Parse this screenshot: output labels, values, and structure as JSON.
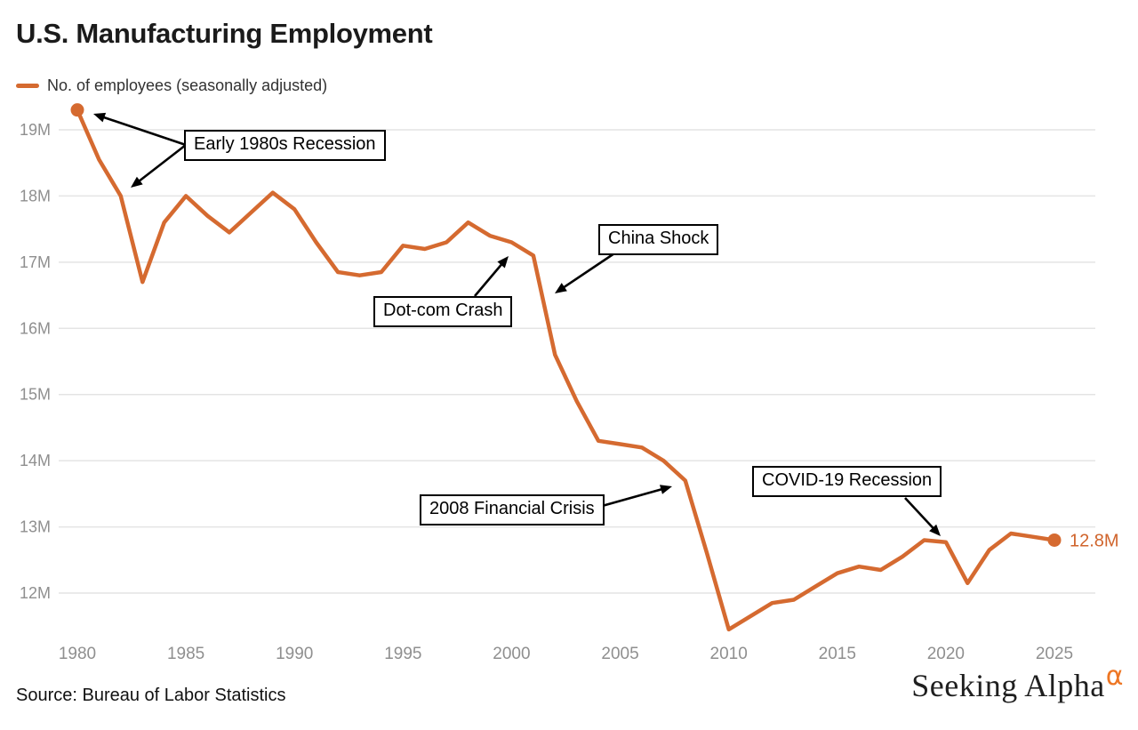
{
  "header": {
    "title": "U.S. Manufacturing Employment",
    "legend_label": "No. of employees (seasonally adjusted)"
  },
  "footer": {
    "source": "Source: Bureau of Labor Statistics",
    "logo_text": "Seeking Alpha",
    "logo_symbol": "α"
  },
  "chart_data": {
    "type": "line",
    "title": "U.S. Manufacturing Employment",
    "series_name": "No. of employees (seasonally adjusted)",
    "x_start": 1980,
    "x": [
      1980,
      1981,
      1982,
      1983,
      1984,
      1985,
      1986,
      1987,
      1988,
      1989,
      1990,
      1991,
      1992,
      1993,
      1994,
      1995,
      1996,
      1997,
      1998,
      1999,
      2000,
      2001,
      2002,
      2003,
      2004,
      2005,
      2006,
      2007,
      2008,
      2009,
      2010,
      2011,
      2012,
      2013,
      2014,
      2015,
      2016,
      2017,
      2018,
      2019,
      2020,
      2021,
      2022,
      2023,
      2024,
      2025
    ],
    "values": [
      19.3,
      18.55,
      18.0,
      16.7,
      17.6,
      18.0,
      17.7,
      17.45,
      17.75,
      18.05,
      17.8,
      17.3,
      16.85,
      16.8,
      16.85,
      17.25,
      17.2,
      17.3,
      17.6,
      17.4,
      17.3,
      17.1,
      15.6,
      14.9,
      14.3,
      14.25,
      14.2,
      14.0,
      13.7,
      12.6,
      11.45,
      11.65,
      11.85,
      11.9,
      12.1,
      12.3,
      12.4,
      12.35,
      12.55,
      12.8,
      12.77,
      12.15,
      12.65,
      12.9,
      12.85,
      12.8
    ],
    "unit": "M",
    "end_label": "12.8M",
    "y_ticks": [
      19,
      18,
      17,
      16,
      15,
      14,
      13,
      12
    ],
    "y_tick_suffix": "M",
    "x_ticks": [
      1980,
      1985,
      1990,
      1995,
      2000,
      2005,
      2010,
      2015,
      2020,
      2025
    ],
    "ylim": [
      11.2,
      19.6
    ],
    "xlim": [
      1980,
      2025
    ],
    "grid": "horizontal-only",
    "legend_position": "top-left",
    "annotations": [
      {
        "id": "early-1980s-recession",
        "label": "Early 1980s Recession"
      },
      {
        "id": "dot-com-crash",
        "label": "Dot-com Crash"
      },
      {
        "id": "china-shock",
        "label": "China Shock"
      },
      {
        "id": "2008-financial-crisis",
        "label": "2008 Financial Crisis"
      },
      {
        "id": "covid-19-recession",
        "label": "COVID-19 Recession"
      }
    ],
    "colors": {
      "line": "#d56a30",
      "marker": "#d56a30",
      "end_label": "#d0642c",
      "grid": "#e4e4e4",
      "axis_text": "#8f8f8f",
      "annotation_border": "#000000",
      "arrow": "#000000",
      "alpha_symbol": "#ee7623"
    }
  }
}
